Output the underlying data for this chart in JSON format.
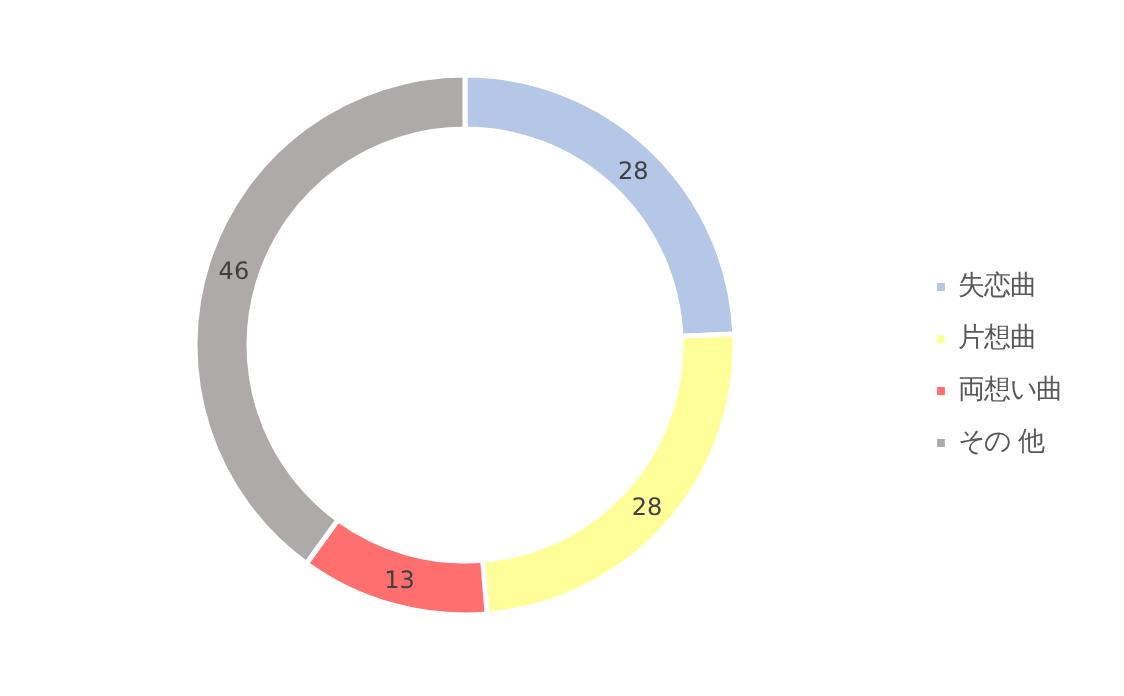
{
  "chart_data": {
    "type": "donut",
    "categories": [
      "失恋曲",
      "片想曲",
      "両想い曲",
      "その 他"
    ],
    "values": [
      28,
      28,
      13,
      46
    ],
    "colors": [
      "#b4c7e7",
      "#ffff99",
      "#ff6f6f",
      "#aeaaaa"
    ],
    "data_labels": true,
    "legend": "right"
  }
}
